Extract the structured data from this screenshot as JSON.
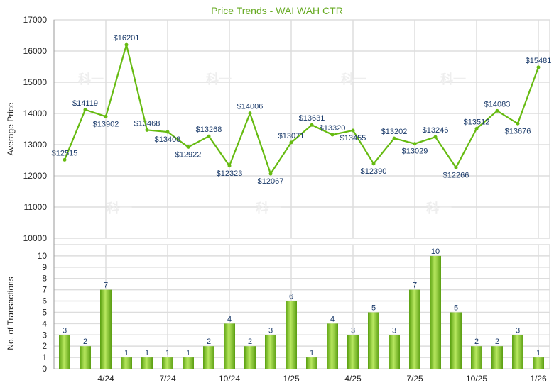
{
  "chart_data": [
    {
      "type": "line",
      "title": "Price Trends - WAI WAH CTR",
      "ylabel": "Average Price",
      "ylim": [
        10000,
        17000
      ],
      "yticks": [
        10000,
        11000,
        12000,
        13000,
        14000,
        15000,
        16000,
        17000
      ],
      "grid": true,
      "series": [
        {
          "name": "Average Price",
          "color": "#66bb11",
          "values": [
            12515,
            14119,
            13902,
            16201,
            13468,
            13408,
            12922,
            13268,
            12323,
            14006,
            12067,
            13071,
            13631,
            13320,
            13455,
            12390,
            13202,
            13029,
            13246,
            12266,
            13512,
            14083,
            13676,
            15481
          ]
        }
      ],
      "value_prefix": "$"
    },
    {
      "type": "bar",
      "ylabel": "No. of Transactions",
      "ylim": [
        0,
        11
      ],
      "yticks": [
        0,
        1,
        2,
        3,
        4,
        5,
        6,
        7,
        8,
        9,
        10
      ],
      "xtick_labels": [
        {
          "index": 2,
          "label": "4/24"
        },
        {
          "index": 5,
          "label": "7/24"
        },
        {
          "index": 8,
          "label": "10/24"
        },
        {
          "index": 11,
          "label": "1/25"
        },
        {
          "index": 14,
          "label": "4/25"
        },
        {
          "index": 17,
          "label": "7/25"
        },
        {
          "index": 20,
          "label": "10/25"
        },
        {
          "index": 23,
          "label": "1/26"
        }
      ],
      "values": [
        3,
        2,
        7,
        1,
        1,
        1,
        1,
        2,
        4,
        2,
        3,
        6,
        1,
        4,
        3,
        5,
        3,
        7,
        10,
        5,
        2,
        2,
        3,
        1
      ],
      "color": "#7cc520"
    }
  ],
  "watermark": "科一"
}
